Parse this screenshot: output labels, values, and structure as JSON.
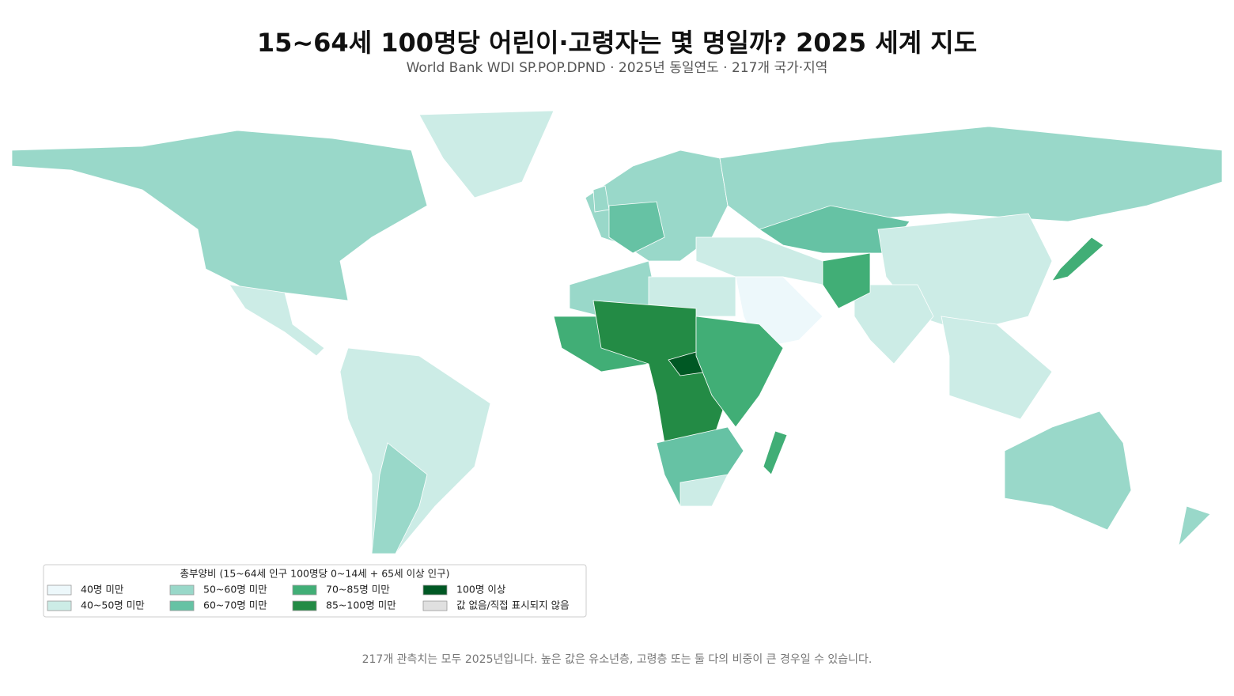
{
  "title": "15~64세 100명당 어린이·고령자는 몇 명일까? 2025 세계 지도",
  "subtitle": "World Bank WDI SP.POP.DPND · 2025년 동일연도 · 217개 국가·지역",
  "legend": {
    "title": "총부양비 (15~64세 인구 100명당 0~14세 + 65세 이상 인구)",
    "items": [
      {
        "label": "40명 미만",
        "color": "#edf8fb"
      },
      {
        "label": "40~50명 미만",
        "color": "#ccece6"
      },
      {
        "label": "50~60명 미만",
        "color": "#99d8c9"
      },
      {
        "label": "60~70명 미만",
        "color": "#66c2a4"
      },
      {
        "label": "70~85명 미만",
        "color": "#41ae76"
      },
      {
        "label": "85~100명 미만",
        "color": "#238b45"
      },
      {
        "label": "100명 이상",
        "color": "#005824"
      },
      {
        "label": "값 없음/직접 표시되지 않음",
        "color": "#e0e0e0"
      }
    ]
  },
  "footnote": "217개 관측치는 모두 2025년입니다. 높은 값은 유소년층, 고령층 또는 둘 다의 비중이 큰 경우일 수 있습니다."
}
